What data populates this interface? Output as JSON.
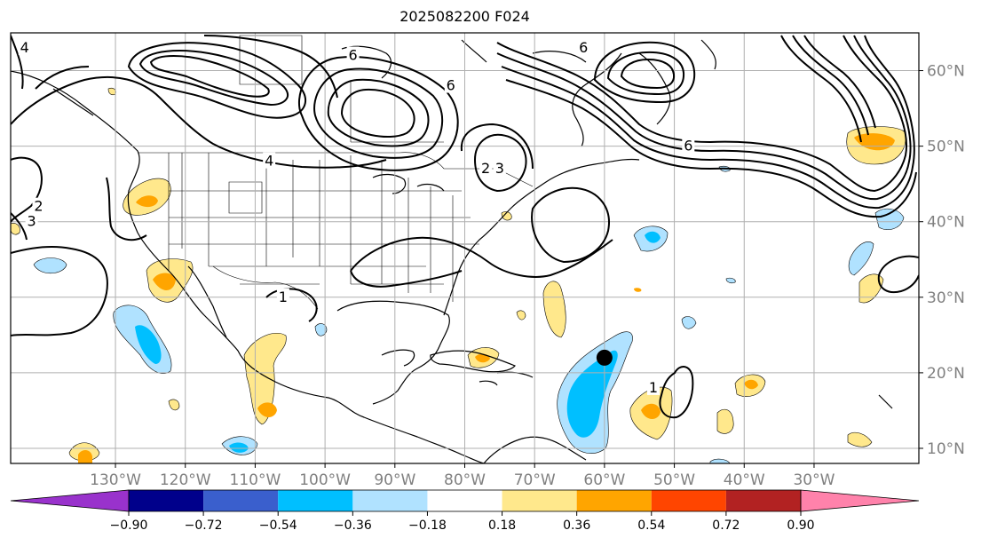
{
  "title": "2025082200 F024",
  "map": {
    "lon_range": [
      -145,
      -15
    ],
    "lat_range": [
      8,
      65
    ],
    "lon_ticks": [
      {
        "value": -130,
        "label": "130°W"
      },
      {
        "value": -120,
        "label": "120°W"
      },
      {
        "value": -110,
        "label": "110°W"
      },
      {
        "value": -100,
        "label": "100°W"
      },
      {
        "value": -90,
        "label": "90°W"
      },
      {
        "value": -80,
        "label": "80°W"
      },
      {
        "value": -70,
        "label": "70°W"
      },
      {
        "value": -60,
        "label": "60°W"
      },
      {
        "value": -50,
        "label": "50°W"
      },
      {
        "value": -40,
        "label": "40°W"
      },
      {
        "value": -30,
        "label": "30°W"
      }
    ],
    "lat_ticks": [
      {
        "value": 10,
        "label": "10°N"
      },
      {
        "value": 20,
        "label": "20°N"
      },
      {
        "value": 30,
        "label": "30°N"
      },
      {
        "value": 40,
        "label": "40°N"
      },
      {
        "value": 50,
        "label": "50°N"
      },
      {
        "value": 60,
        "label": "60°N"
      }
    ],
    "grid": true,
    "storm_marker": {
      "lon": -60,
      "lat": 22
    },
    "contour_labels": [
      {
        "text": "6",
        "lon": -96,
        "lat": 62
      },
      {
        "text": "6",
        "lon": -82,
        "lat": 58
      },
      {
        "text": "4",
        "lon": -108,
        "lat": 48
      },
      {
        "text": "2",
        "lon": -77,
        "lat": 47
      },
      {
        "text": "3",
        "lon": -75,
        "lat": 47
      },
      {
        "text": "6",
        "lon": -48,
        "lat": 50
      },
      {
        "text": "6",
        "lon": -63,
        "lat": 63
      },
      {
        "text": "4",
        "lon": -143,
        "lat": 63
      },
      {
        "text": "2",
        "lon": -141,
        "lat": 42
      },
      {
        "text": "3",
        "lon": -142,
        "lat": 40
      },
      {
        "text": "1",
        "lon": -53,
        "lat": 18
      },
      {
        "text": "1",
        "lon": -106,
        "lat": 30
      }
    ]
  },
  "colorbar": {
    "colors": [
      "#9932cc",
      "#00008b",
      "#3a5fcd",
      "#00bfff",
      "#b0e2ff",
      "#ffffff",
      "#ffe88c",
      "#ffa500",
      "#ff4500",
      "#b22222",
      "#ff82ab"
    ],
    "tick_labels": [
      "−0.90",
      "−0.72",
      "−0.54",
      "−0.36",
      "−0.18",
      "0.18",
      "0.36",
      "0.54",
      "0.72",
      "0.90"
    ]
  }
}
